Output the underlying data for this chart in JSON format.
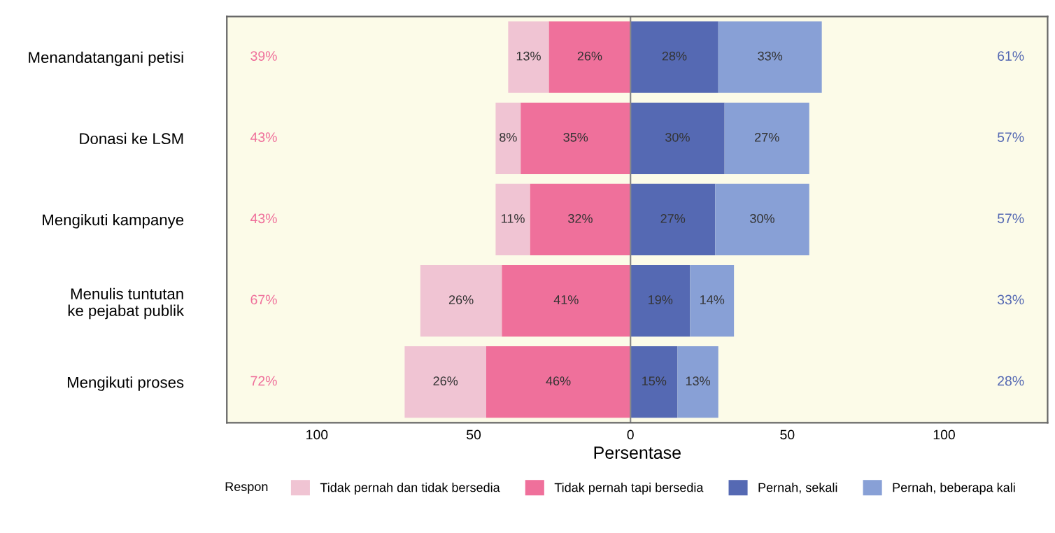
{
  "chart_data": {
    "type": "bar",
    "orientation": "horizontal",
    "categories": [
      "Menandatangani petisi",
      "Donasi ke LSM",
      "Mengikuti kampanye",
      "Menulis tuntutan\nke pejabat publik",
      "Mengikuti proses"
    ],
    "series": [
      {
        "name": "Tidak pernah dan tidak bersedia",
        "color": "#f0c4d3",
        "values": [
          13,
          8,
          11,
          26,
          26
        ],
        "base": [
          -39,
          -43,
          -43,
          -67,
          -72
        ],
        "value_labels": [
          "13%",
          "8%",
          "11%",
          "26%",
          "26%"
        ]
      },
      {
        "name": "Tidak pernah tapi bersedia",
        "color": "#ef709b",
        "values": [
          26,
          35,
          32,
          41,
          46
        ],
        "base": [
          -26,
          -35,
          -32,
          -41,
          -46
        ],
        "value_labels": [
          "26%",
          "35%",
          "32%",
          "41%",
          "46%"
        ]
      },
      {
        "name": "Pernah, sekali",
        "color": "#5569b3",
        "values": [
          28,
          30,
          27,
          19,
          15
        ],
        "base": [
          0,
          0,
          0,
          0,
          0
        ],
        "value_labels": [
          "28%",
          "30%",
          "27%",
          "19%",
          "15%"
        ]
      },
      {
        "name": "Pernah, beberapa kali",
        "color": "#88a0d6",
        "values": [
          33,
          27,
          30,
          14,
          13
        ],
        "base": [
          28,
          30,
          27,
          19,
          15
        ],
        "value_labels": [
          "33%",
          "27%",
          "30%",
          "14%",
          "13%"
        ]
      }
    ],
    "xlim": [
      -128.7,
      133
    ],
    "xticks": [
      {
        "value": -100,
        "label": "100"
      },
      {
        "value": -50,
        "label": "50"
      },
      0,
      50,
      100
    ],
    "xlabel": "Persentase",
    "legend_title": "Respon",
    "legend": "bottom",
    "ref_lines": [
      {
        "axis": "x",
        "value": 0,
        "color": "#888888"
      }
    ],
    "annotations": [
      "39%",
      "43%",
      "43%",
      "67%",
      "72%",
      "61%",
      "57%",
      "57%",
      "33%",
      "28%"
    ]
  }
}
